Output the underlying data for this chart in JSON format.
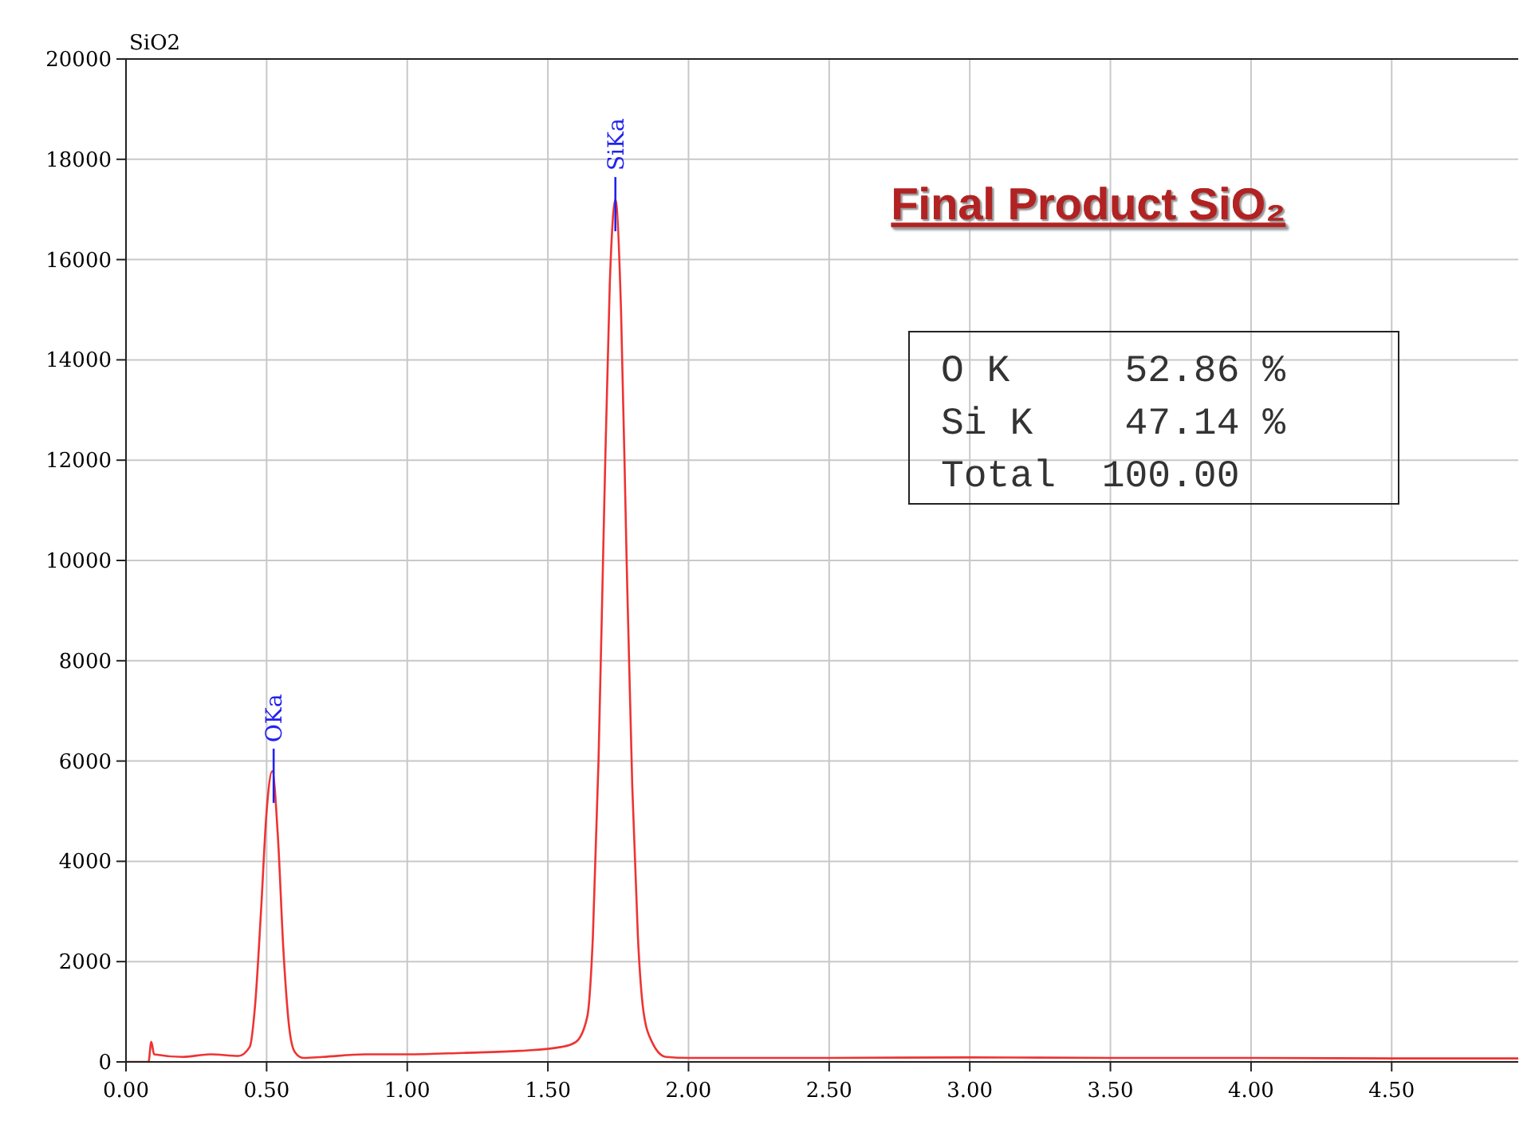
{
  "chart_data": {
    "type": "line",
    "title": "SiO2",
    "subtitle": "Final Product SiO₂",
    "x": [
      0,
      0.08,
      0.09,
      0.1,
      0.2,
      0.3,
      0.4,
      0.44,
      0.46,
      0.48,
      0.5,
      0.52,
      0.54,
      0.56,
      0.58,
      0.6,
      0.63,
      0.7,
      0.85,
      1.0,
      1.2,
      1.4,
      1.55,
      1.6,
      1.64,
      1.66,
      1.68,
      1.7,
      1.72,
      1.74,
      1.76,
      1.78,
      1.8,
      1.82,
      1.84,
      1.87,
      1.92,
      2.0,
      2.5,
      3.0,
      3.5,
      4.0,
      4.5,
      4.95
    ],
    "series": [
      {
        "color": "#ee3333",
        "values": [
          0,
          0,
          400,
          150,
          100,
          150,
          120,
          300,
          1200,
          3000,
          5000,
          5800,
          4500,
          2200,
          700,
          200,
          80,
          100,
          150,
          150,
          180,
          220,
          300,
          400,
          900,
          2500,
          6000,
          11000,
          15500,
          17200,
          15000,
          10000,
          5500,
          2500,
          1000,
          400,
          100,
          80,
          80,
          90,
          80,
          80,
          70,
          70
        ]
      }
    ],
    "xlim": [
      0,
      4.95
    ],
    "ylim": [
      0,
      20000
    ],
    "xticks": [
      {
        "value": 0,
        "label": "0.00"
      },
      {
        "value": 0.5,
        "label": "0.50"
      },
      {
        "value": 1,
        "label": "1.00"
      },
      {
        "value": 1.5,
        "label": "1.50"
      },
      {
        "value": 2,
        "label": "2.00"
      },
      {
        "value": 2.5,
        "label": "2.50"
      },
      {
        "value": 3,
        "label": "3.00"
      },
      {
        "value": 3.5,
        "label": "3.50"
      },
      {
        "value": 4,
        "label": "4.00"
      },
      {
        "value": 4.5,
        "label": "4.50"
      }
    ],
    "yticks": [
      0,
      2000,
      4000,
      6000,
      8000,
      10000,
      12000,
      14000,
      16000,
      18000,
      20000
    ],
    "grid": true,
    "marker": "none",
    "line_style": "solid",
    "annotations": [
      {
        "text": "OKa",
        "x": 0.525,
        "y": 5800
      },
      {
        "text": "SiKa",
        "x": 1.74,
        "y": 17200
      },
      "O K     52.86 %",
      "Si K    47.14 %",
      "Total  100.00"
    ]
  }
}
